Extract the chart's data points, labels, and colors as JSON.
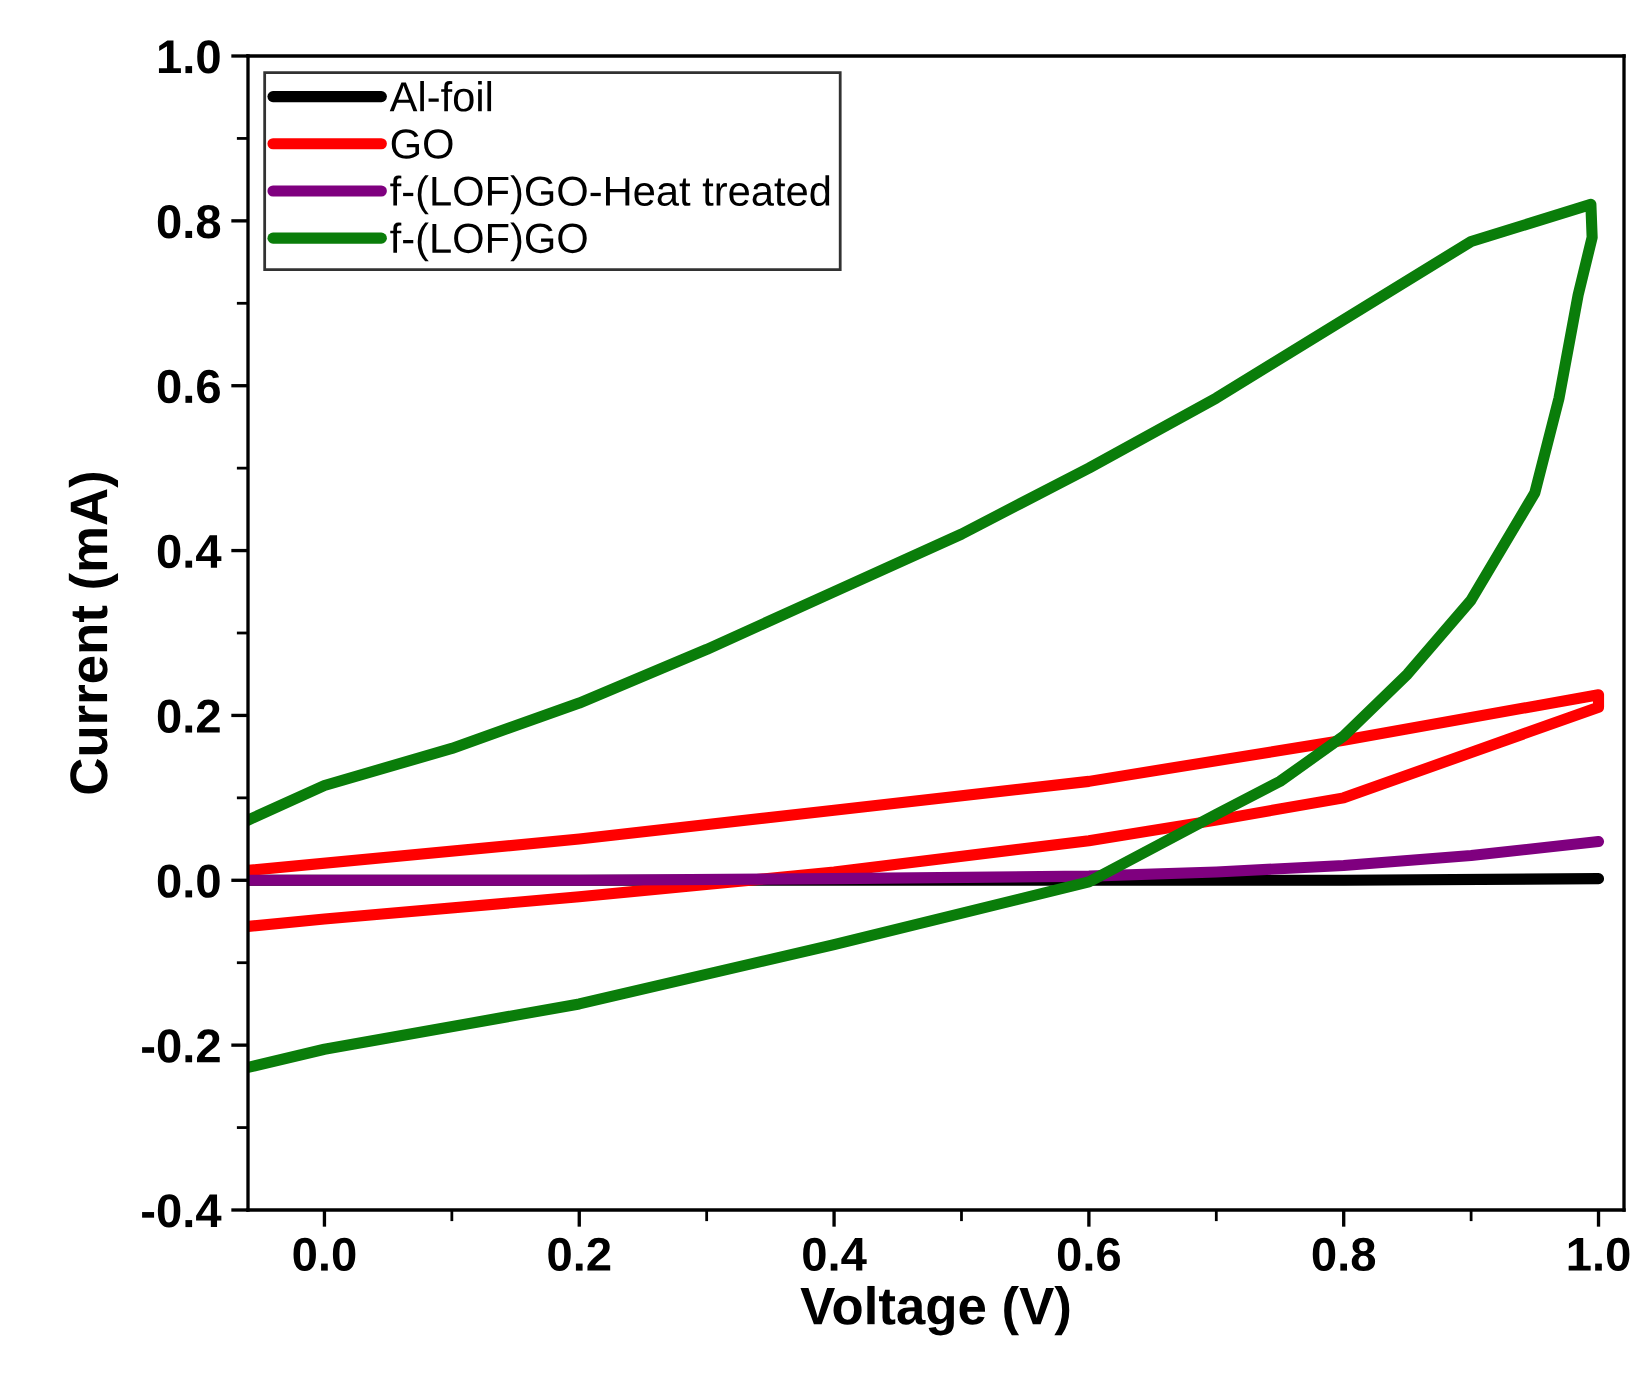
{
  "chart_data": {
    "type": "line",
    "xlabel": "Voltage (V)",
    "ylabel": "Current (mA)",
    "xlim": [
      -0.06,
      1.02
    ],
    "ylim": [
      -0.4,
      1.0
    ],
    "xticks": [
      {
        "value": 0,
        "label": "0.0"
      },
      0.2,
      0.4,
      0.6,
      0.8,
      {
        "value": 1,
        "label": "1.0"
      }
    ],
    "yticks": [
      -0.4,
      -0.2,
      {
        "value": 0,
        "label": "0.0"
      },
      0.2,
      0.4,
      0.6,
      0.8,
      {
        "value": 1,
        "label": "1.0"
      }
    ],
    "legend": "top left",
    "grid": false,
    "marker": "none",
    "line_style": "solid",
    "series": [
      {
        "name": "Al-foil",
        "color": "#000000",
        "x": [
          -0.06,
          0.2,
          0.4,
          0.6,
          0.8,
          1.0
        ],
        "values": [
          0.0,
          0.0,
          0.0,
          0.0,
          0.0,
          0.002
        ]
      },
      {
        "name": "GO",
        "color": "#ff0000",
        "x": [
          -0.06,
          0.2,
          0.4,
          0.6,
          0.8,
          1.0,
          1.0,
          0.9,
          0.8,
          0.7,
          0.6,
          0.4,
          0.2,
          0.0,
          -0.06
        ],
        "values": [
          0.012,
          0.05,
          0.085,
          0.12,
          0.17,
          0.225,
          0.21,
          0.155,
          0.1,
          0.073,
          0.048,
          0.01,
          -0.02,
          -0.047,
          -0.056
        ]
      },
      {
        "name": "f-(LOF)GO-Heat treated",
        "color": "#7f007f",
        "x": [
          -0.06,
          0.2,
          0.4,
          0.6,
          0.7,
          0.8,
          0.9,
          1.0
        ],
        "values": [
          0.0,
          0.0,
          0.002,
          0.005,
          0.01,
          0.018,
          0.03,
          0.047
        ]
      },
      {
        "name": "f-(LOF)GO",
        "color": "#0a7d0a",
        "x": [
          -0.06,
          0.0,
          0.1,
          0.2,
          0.3,
          0.4,
          0.5,
          0.6,
          0.7,
          0.8,
          0.9,
          0.994,
          0.995,
          0.984,
          0.969,
          0.95,
          0.9,
          0.85,
          0.8,
          0.75,
          0.7,
          0.6,
          0.4,
          0.2,
          0.0,
          -0.06
        ],
        "values": [
          0.073,
          0.115,
          0.16,
          0.215,
          0.28,
          0.35,
          0.42,
          0.5,
          0.585,
          0.68,
          0.775,
          0.82,
          0.78,
          0.71,
          0.585,
          0.47,
          0.34,
          0.25,
          0.175,
          0.12,
          0.08,
          -0.002,
          -0.078,
          -0.15,
          -0.205,
          -0.227
        ]
      }
    ]
  }
}
